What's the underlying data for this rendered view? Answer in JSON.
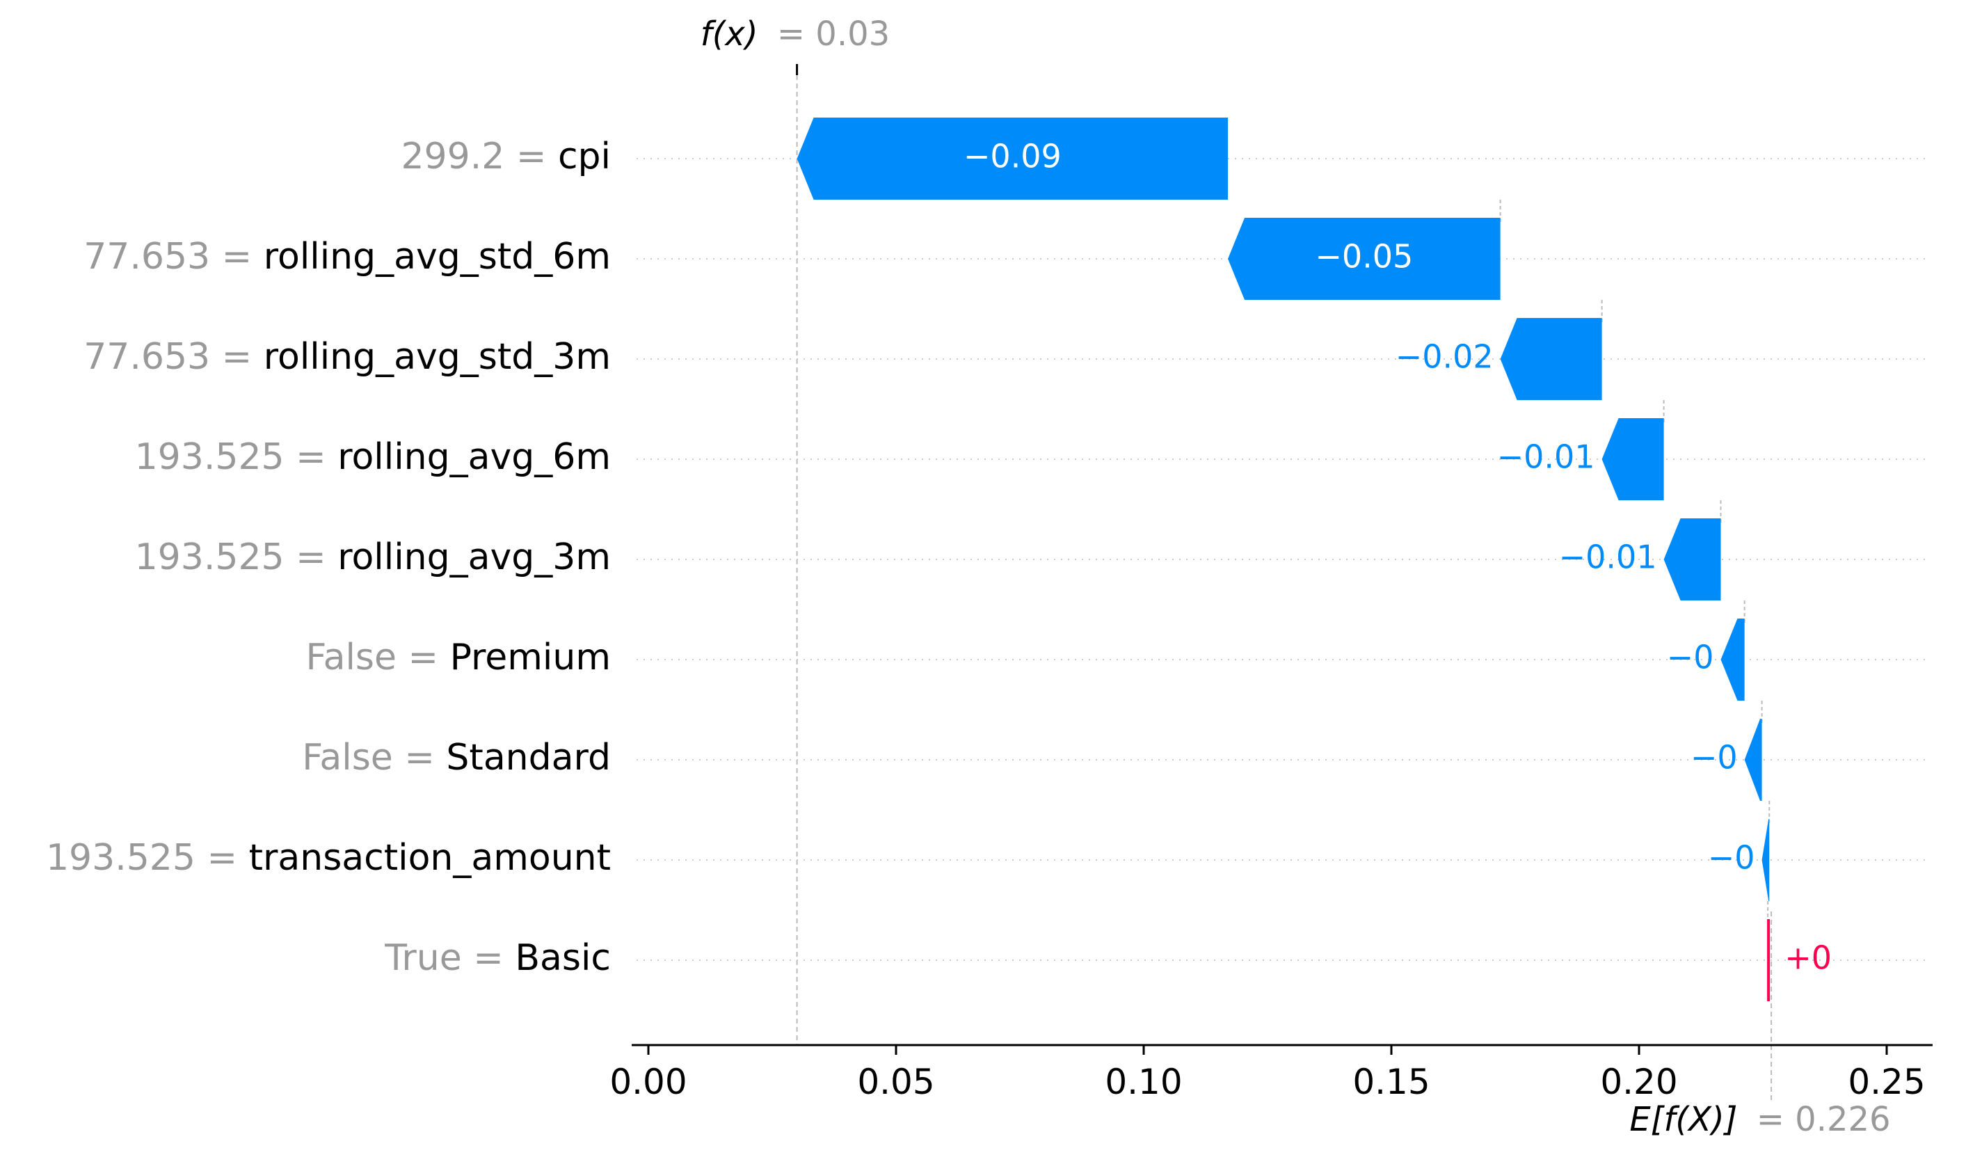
{
  "chart_data": {
    "type": "waterfall",
    "fx": {
      "label": "f(x)",
      "value_text": "= 0.03",
      "value": 0.03
    },
    "efx": {
      "label": "E[f(X)]",
      "value_text": "= 0.226",
      "value": 0.226
    },
    "xlim": [
      -0.003,
      0.26
    ],
    "xticks": [
      0.0,
      0.05,
      0.1,
      0.15,
      0.2,
      0.25
    ],
    "xtick_labels": [
      "0.00",
      "0.05",
      "0.10",
      "0.15",
      "0.20",
      "0.25"
    ],
    "features": [
      {
        "value": "299.2",
        "name": "cpi",
        "start": 0.117,
        "end": 0.03,
        "label": "−0.09"
      },
      {
        "value": "77.653",
        "name": "rolling_avg_std_6m",
        "start": 0.172,
        "end": 0.117,
        "label": "−0.05"
      },
      {
        "value": "77.653",
        "name": "rolling_avg_std_3m",
        "start": 0.1925,
        "end": 0.172,
        "label": "−0.02"
      },
      {
        "value": "193.525",
        "name": "rolling_avg_6m",
        "start": 0.205,
        "end": 0.1925,
        "label": "−0.01"
      },
      {
        "value": "193.525",
        "name": "rolling_avg_3m",
        "start": 0.2165,
        "end": 0.205,
        "label": "−0.01"
      },
      {
        "value": "False",
        "name": "Premium",
        "start": 0.2213,
        "end": 0.2165,
        "label": "−0"
      },
      {
        "value": "False",
        "name": "Standard",
        "start": 0.2248,
        "end": 0.2213,
        "label": "−0"
      },
      {
        "value": "193.525",
        "name": "transaction_amount",
        "start": 0.2263,
        "end": 0.2248,
        "label": "−0"
      },
      {
        "value": "True",
        "name": "Basic",
        "start": 0.226,
        "end": 0.2263,
        "label": "+0"
      }
    ],
    "colors": {
      "negative": "#008bfb",
      "positive": "#ff0051",
      "muted": "#999999"
    }
  }
}
